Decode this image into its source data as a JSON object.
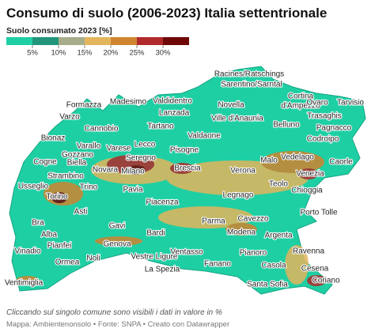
{
  "header": {
    "title": "Consumo di suolo (2006-2023) Italia settentrionale"
  },
  "legend": {
    "title": "Suolo consumato 2023 [%]",
    "colors": [
      "#1fcfa4",
      "#22967a",
      "#a7ad8a",
      "#e3b55c",
      "#cf8530",
      "#b02a2b",
      "#6f0808"
    ],
    "ticks": [
      "5%",
      "10%",
      "15%",
      "20%",
      "25%",
      "30%"
    ]
  },
  "places": [
    "Racines/Ratschings",
    "Sarentino/Sarntal",
    "Formazza",
    "Madesimo",
    "Valdidentro",
    "Cortina",
    "d'Ampezzo",
    "Ovaro",
    "Tarvisio",
    "Novella",
    "Varzo",
    "Lanzada",
    "Ville d'Anaunia",
    "Trasaghis",
    "Cannobio",
    "Tartano",
    "Belluno",
    "Pagnacco",
    "Bionaz",
    "Valdaone",
    "Codroipo",
    "Varallo",
    "Varese",
    "Lecco",
    "Pisogne",
    "Cogne",
    "Gozzano",
    "Biella",
    "Seregno",
    "Malo",
    "Vedelago",
    "Caorle",
    "Novara",
    "Milano",
    "Brescia",
    "Verona",
    "Venezia",
    "Strambino",
    "Usseglio",
    "Trino",
    "Teolo",
    "Pavia",
    "Legnago",
    "Chioggia",
    "Torino",
    "Piacenza",
    "Asti",
    "Porto Tolle",
    "Bra",
    "Gavi",
    "Cavezzo",
    "Parma",
    "Bardi",
    "Modena",
    "Argenta",
    "Alba",
    "Vinadio",
    "Pianfei",
    "Genova",
    "Ventasso",
    "Pianoro",
    "Ravenna",
    "Noli",
    "Vestre Ligure",
    "Ormea",
    "Casola",
    "Fanano",
    "La Spezia",
    "Cesena",
    "Santa Sofia",
    "Coriano",
    "Ventimiglia"
  ],
  "footer": {
    "note": "Cliccando sul singolo comune sono visibili i dati in valore in %",
    "credits": "Mappa: Ambientenonsolo • Fonte: SNPA • Creato con Datawrapper"
  }
}
